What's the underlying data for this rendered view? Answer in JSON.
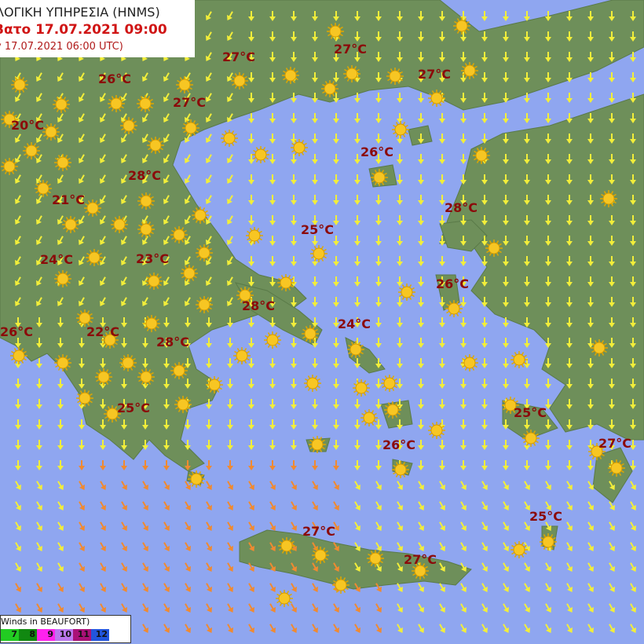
{
  "header": {
    "agency": "ΛΟΓΙΚΗ ΥΠΗΡΕΣΙΑ (HNMS)",
    "valid": "Βατο 17.07.2021 09:00",
    "run": "y 17.07.2021 06:00 UTC)"
  },
  "temperatures": [
    "27°C",
    "27°C",
    "27°C",
    "26°C",
    "27°C",
    "20°C",
    "26°C",
    "28°C",
    "21°C",
    "28°C",
    "25°C",
    "24°C",
    "23°C",
    "26°C",
    "28°C",
    "24°C",
    "26°C",
    "22°C",
    "28°C",
    "25°C",
    "25°C",
    "26°C",
    "27°C",
    "25°C",
    "27°C",
    "27°C"
  ],
  "legend": {
    "title": "Winds in BEAUFORT)",
    "scale": [
      {
        "label": "7",
        "color": "#22cc22"
      },
      {
        "label": "8",
        "color": "#118811"
      },
      {
        "label": "9",
        "color": "#ff22ee"
      },
      {
        "label": "10",
        "color": "#bb77ee"
      },
      {
        "label": "11",
        "color": "#aa1177"
      },
      {
        "label": "12",
        "color": "#2255dd"
      }
    ]
  },
  "colors": {
    "sea": "#8fa6f0",
    "land": "#6e8f5a",
    "temp_text": "#8b0a0a",
    "wind_light": "#f2ee3a",
    "wind_strong": "#f08a30"
  },
  "icons": {
    "weather": "sun-icon",
    "wind": "wind-arrow-icon",
    "cloud": "partly-cloudy-icon"
  }
}
